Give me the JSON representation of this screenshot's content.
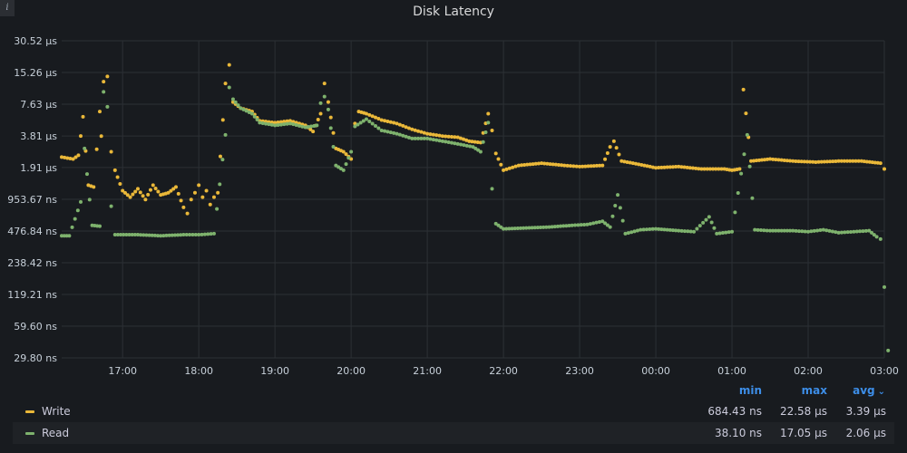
{
  "panel": {
    "title": "Disk Latency",
    "info_icon": "info-icon"
  },
  "legend": {
    "headers": {
      "min": "min",
      "max": "max",
      "avg": "avg"
    },
    "sort_icon": "chevron-down-icon",
    "rows": [
      {
        "name": "Write",
        "color": "#eab839",
        "min": "684.43 ns",
        "max": "22.58 µs",
        "avg": "3.39 µs"
      },
      {
        "name": "Read",
        "color": "#7eb26d",
        "min": "38.10 ns",
        "max": "17.05 µs",
        "avg": "2.06 µs"
      }
    ]
  },
  "chart_data": {
    "type": "scatter",
    "title": "Disk Latency",
    "y_scale": "log2",
    "y_unit": "ns",
    "ylim": [
      29.8,
      30520
    ],
    "y_ticks": [
      {
        "value": 30520,
        "label": "30.52 µs"
      },
      {
        "value": 15260,
        "label": "15.26 µs"
      },
      {
        "value": 7630,
        "label": "7.63 µs"
      },
      {
        "value": 3810,
        "label": "3.81 µs"
      },
      {
        "value": 1910,
        "label": "1.91 µs"
      },
      {
        "value": 953.67,
        "label": "953.67 ns"
      },
      {
        "value": 476.84,
        "label": "476.84 ns"
      },
      {
        "value": 238.42,
        "label": "238.42 ns"
      },
      {
        "value": 119.21,
        "label": "119.21 ns"
      },
      {
        "value": 59.6,
        "label": "59.60 ns"
      },
      {
        "value": 29.8,
        "label": "29.80 ns"
      }
    ],
    "x_unit": "hour",
    "xlim": [
      16.2,
      27.0
    ],
    "x_ticks": [
      {
        "value": 17,
        "label": "17:00"
      },
      {
        "value": 18,
        "label": "18:00"
      },
      {
        "value": 19,
        "label": "19:00"
      },
      {
        "value": 20,
        "label": "20:00"
      },
      {
        "value": 21,
        "label": "21:00"
      },
      {
        "value": 22,
        "label": "22:00"
      },
      {
        "value": 23,
        "label": "23:00"
      },
      {
        "value": 24,
        "label": "00:00"
      },
      {
        "value": 25,
        "label": "01:00"
      },
      {
        "value": 26,
        "label": "02:00"
      },
      {
        "value": 27,
        "label": "03:00"
      }
    ],
    "grid": true,
    "legend_position": "bottom",
    "series": [
      {
        "name": "Write",
        "color": "#eab839",
        "points": [
          [
            16.2,
            2400
          ],
          [
            16.35,
            2300
          ],
          [
            16.42,
            2500
          ],
          [
            16.48,
            5800
          ],
          [
            16.55,
            1300
          ],
          [
            16.62,
            1250
          ],
          [
            16.7,
            6500
          ],
          [
            16.72,
            3800
          ],
          [
            16.75,
            12500
          ],
          [
            16.8,
            14000
          ],
          [
            16.85,
            2700
          ],
          [
            16.9,
            1800
          ],
          [
            17.0,
            1150
          ],
          [
            17.1,
            1000
          ],
          [
            17.2,
            1200
          ],
          [
            17.3,
            950
          ],
          [
            17.4,
            1300
          ],
          [
            17.5,
            1050
          ],
          [
            17.6,
            1100
          ],
          [
            17.7,
            1250
          ],
          [
            17.8,
            800
          ],
          [
            17.85,
            700
          ],
          [
            17.9,
            950
          ],
          [
            17.95,
            1100
          ],
          [
            18.0,
            1300
          ],
          [
            18.05,
            1000
          ],
          [
            18.1,
            1150
          ],
          [
            18.15,
            850
          ],
          [
            18.2,
            1000
          ],
          [
            18.25,
            1100
          ],
          [
            18.35,
            12000
          ],
          [
            18.4,
            18000
          ],
          [
            18.45,
            8000
          ],
          [
            18.55,
            7000
          ],
          [
            18.7,
            6500
          ],
          [
            18.8,
            5300
          ],
          [
            19.0,
            5100
          ],
          [
            19.2,
            5300
          ],
          [
            19.4,
            4800
          ],
          [
            19.5,
            4200
          ],
          [
            19.6,
            6200
          ],
          [
            19.65,
            12000
          ],
          [
            19.7,
            8000
          ],
          [
            19.8,
            2900
          ],
          [
            19.9,
            2700
          ],
          [
            20.0,
            2300
          ],
          [
            20.05,
            5000
          ],
          [
            20.1,
            6500
          ],
          [
            20.2,
            6200
          ],
          [
            20.4,
            5400
          ],
          [
            20.6,
            5000
          ],
          [
            20.8,
            4400
          ],
          [
            21.0,
            4000
          ],
          [
            21.2,
            3800
          ],
          [
            21.4,
            3700
          ],
          [
            21.55,
            3400
          ],
          [
            21.7,
            3300
          ],
          [
            21.8,
            6200
          ],
          [
            21.85,
            4300
          ],
          [
            21.9,
            2600
          ],
          [
            22.0,
            1800
          ],
          [
            22.2,
            2000
          ],
          [
            22.5,
            2100
          ],
          [
            22.8,
            2000
          ],
          [
            23.0,
            1950
          ],
          [
            23.3,
            2000
          ],
          [
            23.4,
            3000
          ],
          [
            23.45,
            3400
          ],
          [
            23.55,
            2200
          ],
          [
            23.7,
            2100
          ],
          [
            24.0,
            1900
          ],
          [
            24.3,
            1950
          ],
          [
            24.6,
            1850
          ],
          [
            24.9,
            1850
          ],
          [
            25.0,
            1800
          ],
          [
            25.1,
            1850
          ],
          [
            25.15,
            10500
          ],
          [
            25.25,
            2200
          ],
          [
            25.5,
            2300
          ],
          [
            25.8,
            2200
          ],
          [
            26.1,
            2150
          ],
          [
            26.4,
            2200
          ],
          [
            26.7,
            2200
          ],
          [
            26.95,
            2100
          ],
          [
            27.0,
            1850
          ]
        ]
      },
      {
        "name": "Read",
        "color": "#7eb26d",
        "points": [
          [
            16.2,
            430
          ],
          [
            16.3,
            430
          ],
          [
            16.45,
            900
          ],
          [
            16.5,
            2900
          ],
          [
            16.6,
            540
          ],
          [
            16.7,
            530
          ],
          [
            16.75,
            10000
          ],
          [
            16.8,
            7200
          ],
          [
            16.85,
            820
          ],
          [
            16.9,
            440
          ],
          [
            17.2,
            440
          ],
          [
            17.5,
            430
          ],
          [
            17.8,
            440
          ],
          [
            18.0,
            440
          ],
          [
            18.2,
            450
          ],
          [
            18.35,
            3900
          ],
          [
            18.4,
            11000
          ],
          [
            18.45,
            8500
          ],
          [
            18.55,
            7000
          ],
          [
            18.7,
            6200
          ],
          [
            18.8,
            5100
          ],
          [
            19.0,
            4800
          ],
          [
            19.2,
            5000
          ],
          [
            19.4,
            4600
          ],
          [
            19.55,
            4800
          ],
          [
            19.6,
            7800
          ],
          [
            19.65,
            9000
          ],
          [
            19.7,
            6800
          ],
          [
            19.8,
            2000
          ],
          [
            19.9,
            1800
          ],
          [
            20.0,
            2700
          ],
          [
            20.05,
            4700
          ],
          [
            20.2,
            5500
          ],
          [
            20.4,
            4300
          ],
          [
            20.6,
            4000
          ],
          [
            20.8,
            3600
          ],
          [
            21.0,
            3600
          ],
          [
            21.2,
            3400
          ],
          [
            21.4,
            3200
          ],
          [
            21.6,
            3000
          ],
          [
            21.7,
            2700
          ],
          [
            21.8,
            5100
          ],
          [
            21.85,
            1200
          ],
          [
            21.9,
            560
          ],
          [
            22.0,
            500
          ],
          [
            22.3,
            510
          ],
          [
            22.6,
            520
          ],
          [
            22.9,
            540
          ],
          [
            23.1,
            550
          ],
          [
            23.3,
            590
          ],
          [
            23.4,
            520
          ],
          [
            23.5,
            1050
          ],
          [
            23.6,
            450
          ],
          [
            23.8,
            490
          ],
          [
            24.0,
            500
          ],
          [
            24.3,
            480
          ],
          [
            24.5,
            470
          ],
          [
            24.7,
            650
          ],
          [
            24.8,
            450
          ],
          [
            25.0,
            470
          ],
          [
            25.2,
            3900
          ],
          [
            25.3,
            490
          ],
          [
            25.5,
            480
          ],
          [
            25.8,
            480
          ],
          [
            26.0,
            470
          ],
          [
            26.2,
            490
          ],
          [
            26.4,
            460
          ],
          [
            26.6,
            470
          ],
          [
            26.8,
            480
          ],
          [
            26.9,
            420
          ],
          [
            26.95,
            400
          ],
          [
            27.0,
            140
          ],
          [
            27.05,
            35
          ]
        ]
      }
    ]
  }
}
